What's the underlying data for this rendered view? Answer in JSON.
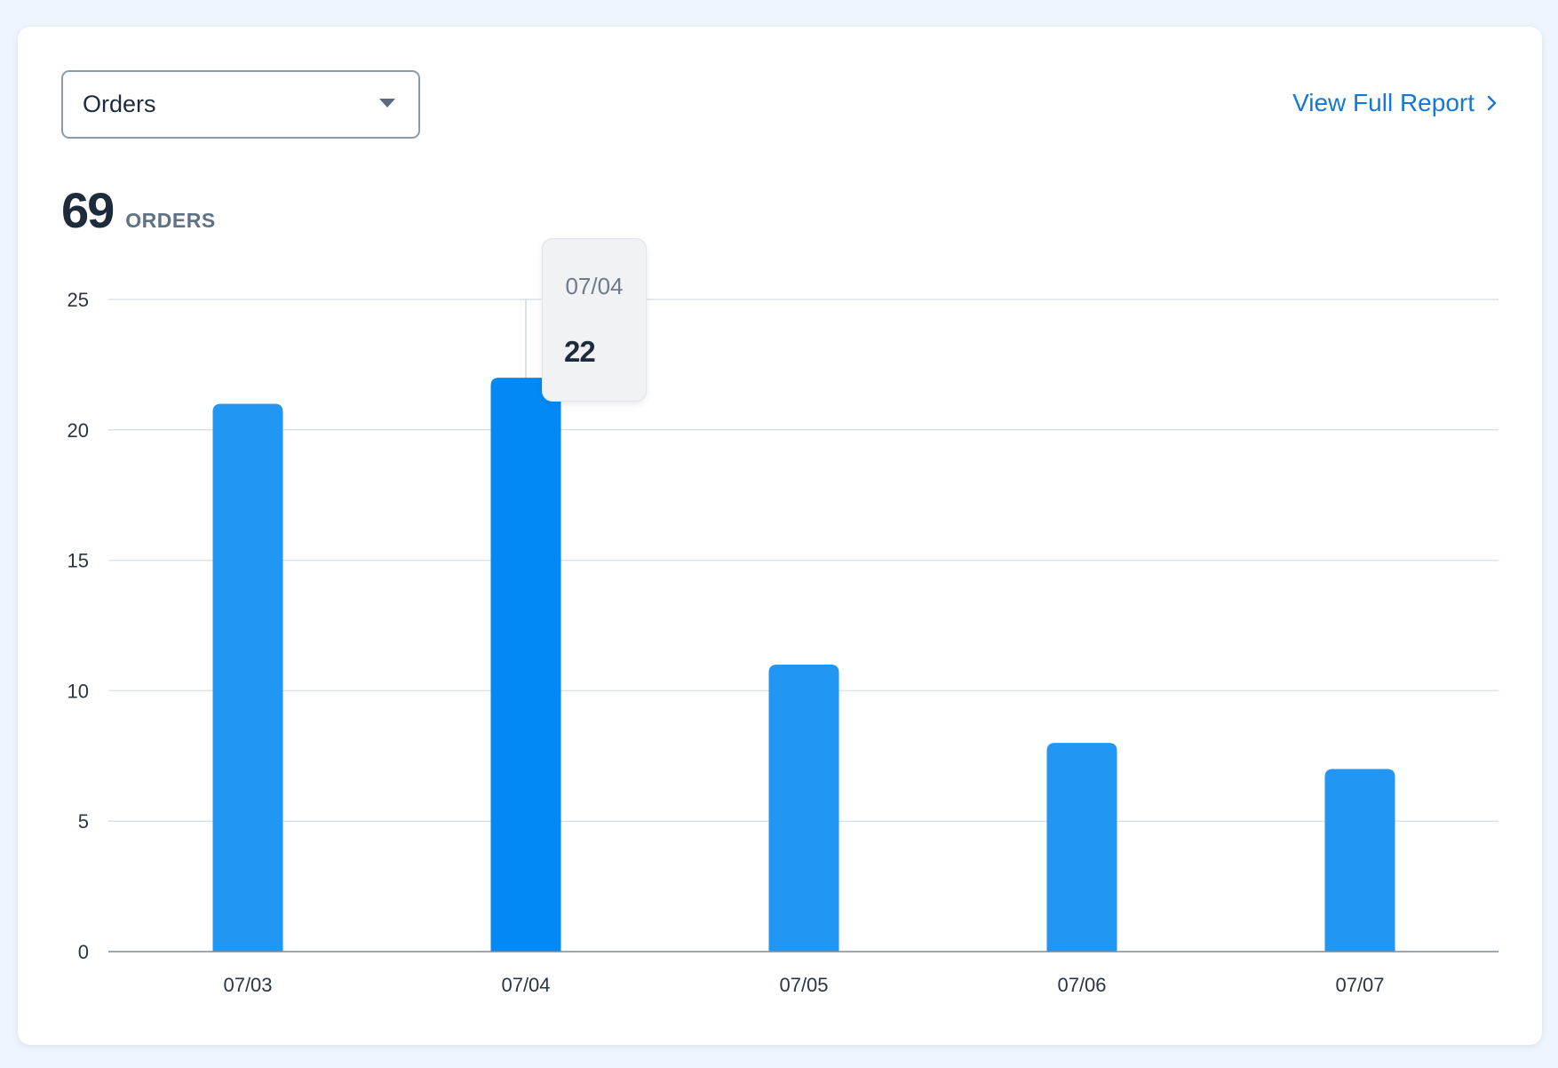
{
  "metric_select": {
    "value": "Orders"
  },
  "report_link": {
    "label": "View Full Report",
    "icon": "chevron-right-icon"
  },
  "summary": {
    "total": "69",
    "unit": "ORDERS"
  },
  "tooltip": {
    "date": "07/04",
    "value": "22"
  },
  "colors": {
    "bar": "#2196f3",
    "bar_active": "#0389f6",
    "link": "#1479d6",
    "grid": "#dde3ea"
  },
  "chart_data": {
    "type": "bar",
    "categories": [
      "07/03",
      "07/04",
      "07/05",
      "07/06",
      "07/07"
    ],
    "values": [
      21,
      22,
      11,
      8,
      7
    ],
    "active_index": 1,
    "ylim": [
      0,
      25
    ],
    "yticks": [
      0,
      5,
      10,
      15,
      20,
      25
    ],
    "grid": true,
    "xlabel": "",
    "ylabel": ""
  }
}
